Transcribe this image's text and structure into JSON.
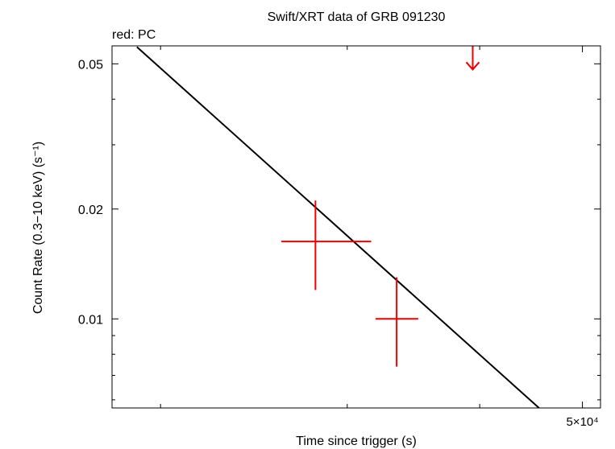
{
  "chart_data": {
    "type": "scatter",
    "title": "Swift/XRT data of GRB 091230",
    "annotation": "red: PC",
    "xlabel": "Time since trigger (s)",
    "ylabel": "Count Rate (0.3−10 keV) (s⁻¹)",
    "x_scale": "log",
    "y_scale": "log",
    "xlim": [
      18000,
      52000
    ],
    "ylim": [
      0.0057,
      0.056
    ],
    "x_tick_labels": [
      {
        "value": 50000,
        "label": "5×10⁴"
      }
    ],
    "y_tick_labels": [
      {
        "value": 0.05,
        "label": "0.05"
      },
      {
        "value": 0.02,
        "label": "0.02"
      },
      {
        "value": 0.01,
        "label": "0.01"
      }
    ],
    "grid": false,
    "series": [
      {
        "name": "PC",
        "color": "#ee0000",
        "points": [
          {
            "x": 28000,
            "y": 0.0163,
            "xerr_low": 2000,
            "xerr_high": 3600,
            "yerr_low": 0.0043,
            "yerr_high": 0.0048
          },
          {
            "x": 33400,
            "y": 0.01,
            "xerr_low": 1500,
            "xerr_high": 1600,
            "yerr_low": 0.0026,
            "yerr_high": 0.003
          }
        ],
        "upper_limits": [
          {
            "x": 39400,
            "y": 0.05
          }
        ]
      }
    ],
    "model": {
      "type": "power-law",
      "color": "#000000",
      "points": [
        {
          "x": 19000,
          "y": 0.0556
        },
        {
          "x": 45500,
          "y": 0.0057
        }
      ]
    }
  }
}
